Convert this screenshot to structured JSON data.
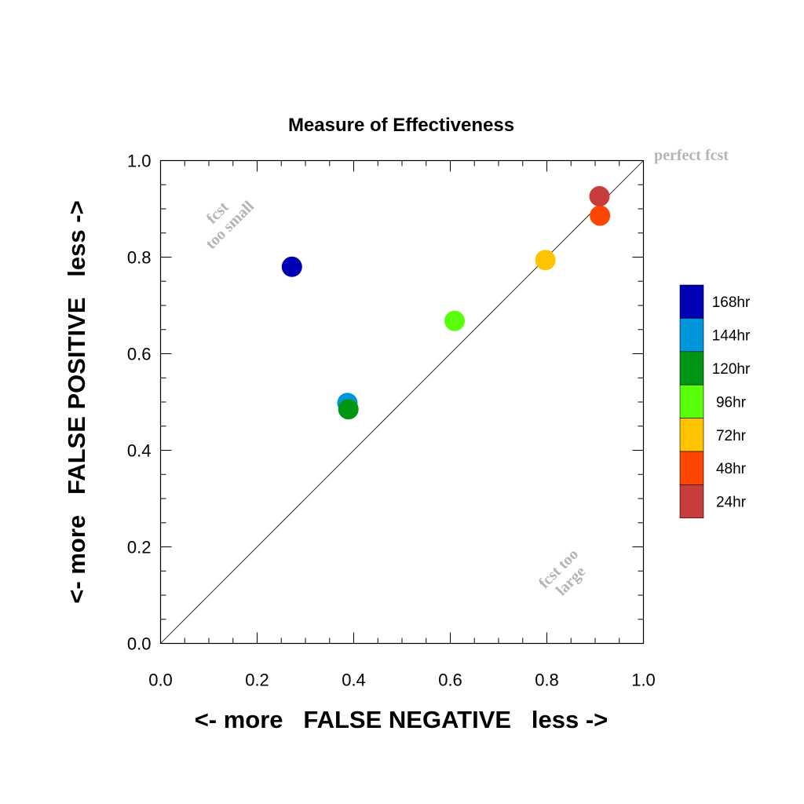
{
  "chart_data": {
    "type": "scatter",
    "title": "Measure of Effectiveness",
    "xlabel": "<- more   FALSE NEGATIVE   less ->",
    "ylabel": "<- more   FALSE POSITIVE   less ->",
    "xlim": [
      0.0,
      1.0
    ],
    "ylim": [
      0.0,
      1.0
    ],
    "xticks": [
      "0.0",
      "0.2",
      "0.4",
      "0.6",
      "0.8",
      "1.0"
    ],
    "yticks": [
      "0.0",
      "0.2",
      "0.4",
      "0.6",
      "0.8",
      "1.0"
    ],
    "grid": false,
    "legend_position": "right",
    "reference_line": {
      "from": [
        0.0,
        0.0
      ],
      "to": [
        1.0,
        1.0
      ]
    },
    "annotations": {
      "perfect": "perfect fcst",
      "small_line1": "fcst",
      "small_line2": "too small",
      "large_line1": "fcst too",
      "large_line2": "large"
    },
    "series": [
      {
        "name": "168hr",
        "color": "#0000b4",
        "x": 0.272,
        "y": 0.78
      },
      {
        "name": "144hr",
        "color": "#0096dc",
        "x": 0.387,
        "y": 0.498
      },
      {
        "name": "120hr",
        "color": "#009614",
        "x": 0.389,
        "y": 0.485
      },
      {
        "name": "96hr",
        "color": "#5aff0a",
        "x": 0.609,
        "y": 0.668
      },
      {
        "name": "72hr",
        "color": "#ffc300",
        "x": 0.797,
        "y": 0.794
      },
      {
        "name": "48hr",
        "color": "#ff4600",
        "x": 0.91,
        "y": 0.886
      },
      {
        "name": "24hr",
        "color": "#c83c3c",
        "x": 0.909,
        "y": 0.926
      }
    ]
  }
}
